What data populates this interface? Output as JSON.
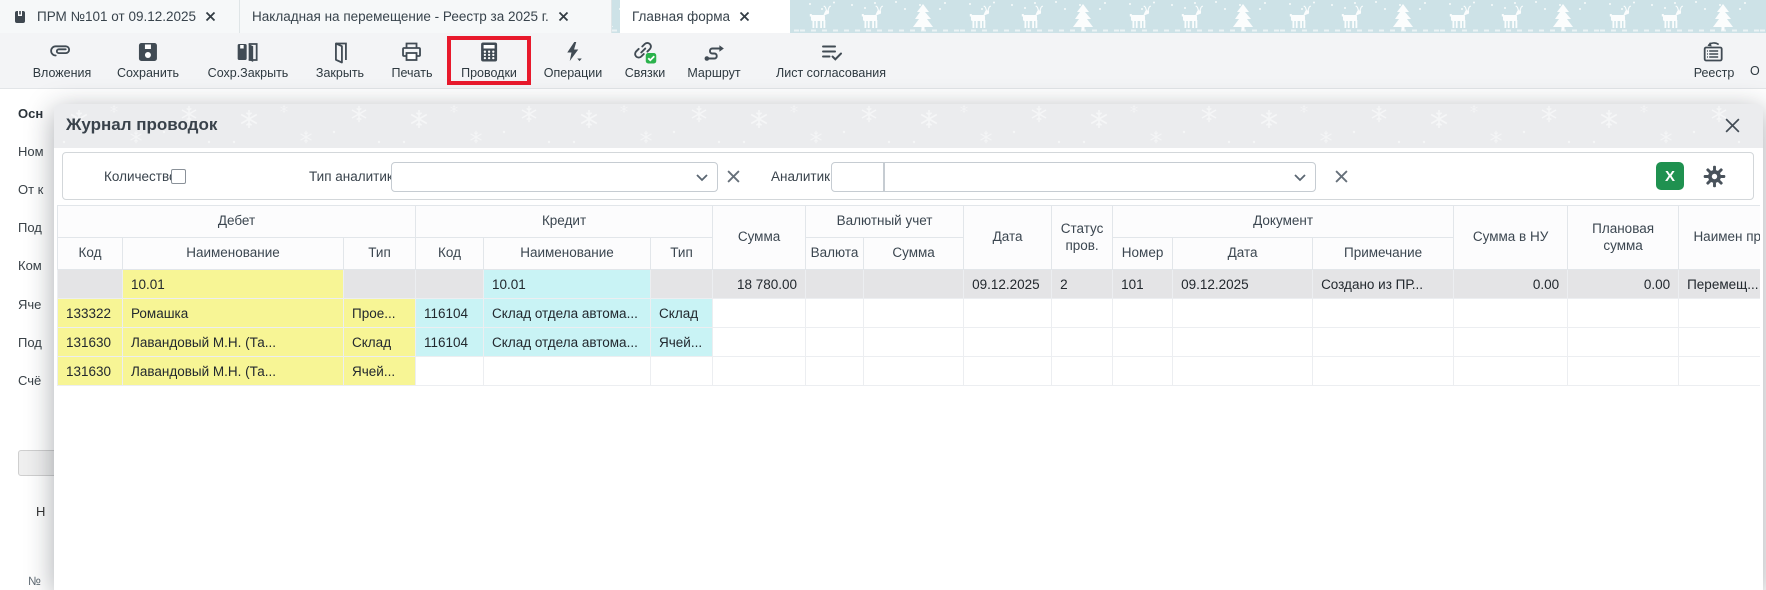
{
  "tabs": [
    {
      "title": "ПРМ №101 от 09.12.2025"
    },
    {
      "title": "Накладная на перемещение - Реестр за 2025 г."
    },
    {
      "title": "Главная форма"
    }
  ],
  "toolbar": {
    "buttons": [
      {
        "label": "Вложения",
        "icon": "paperclip-icon"
      },
      {
        "label": "Сохранить",
        "icon": "save-icon"
      },
      {
        "label": "Сохр.Закрыть",
        "icon": "save-close-icon"
      },
      {
        "label": "Закрыть",
        "icon": "door-icon"
      },
      {
        "label": "Печать",
        "icon": "printer-icon"
      },
      {
        "label": "Проводки",
        "icon": "calculator-icon",
        "highlighted": true
      },
      {
        "label": "Операции",
        "icon": "lightning-icon"
      },
      {
        "label": "Связки",
        "icon": "links-icon"
      },
      {
        "label": "Маршрут",
        "icon": "route-icon"
      },
      {
        "label": "Лист согласования",
        "icon": "checklist-icon"
      }
    ],
    "registry_label": "Реестр",
    "partial_label": "О"
  },
  "background_form": {
    "labels": [
      "Осн",
      "Ном",
      "От к",
      "Под",
      "Ком",
      "Яче",
      "Под",
      "Счё"
    ],
    "section_label": "Н",
    "row_number_label": "№"
  },
  "modal": {
    "title": "Журнал проводок",
    "filters": {
      "quantity": "Количество",
      "type_label": "Тип аналитики",
      "analytics_label": "Аналитика"
    },
    "table": {
      "header": {
        "debit": "Дебет",
        "credit": "Кредит",
        "currency_group": "Валютный учет",
        "document_group": "Документ",
        "code": "Код",
        "name": "Наименование",
        "type": "Тип",
        "sum": "Сумма",
        "currency": "Валюта",
        "date": "Дата",
        "status": "Статус пров.",
        "number": "Номер",
        "note": "Примечание",
        "sum_nu": "Сумма в НУ",
        "planned": "Плановая сумма",
        "entry_name": "Наимен пров"
      },
      "rows": [
        {
          "cells": [
            {
              "t": "",
              "h": "g"
            },
            {
              "t": "10.01",
              "h": "y"
            },
            {
              "t": "",
              "h": "g"
            },
            {
              "t": "",
              "h": "g"
            },
            {
              "t": "10.01",
              "h": "c"
            },
            {
              "t": "",
              "h": "g"
            },
            {
              "t": "18 780.00",
              "h": "g"
            },
            {
              "t": "",
              "h": "g"
            },
            {
              "t": "",
              "h": "g"
            },
            {
              "t": "09.12.2025",
              "h": "g"
            },
            {
              "t": "2",
              "h": "g"
            },
            {
              "t": "101",
              "h": "g"
            },
            {
              "t": "09.12.2025",
              "h": "g"
            },
            {
              "t": "Создано из ПР...",
              "h": "g"
            },
            {
              "t": "0.00",
              "h": "g"
            },
            {
              "t": "0.00",
              "h": "g"
            },
            {
              "t": "Перемещ...",
              "h": "g"
            }
          ]
        },
        {
          "cells": [
            {
              "t": "133322",
              "h": "y"
            },
            {
              "t": "Ромашка",
              "h": "y"
            },
            {
              "t": "Прое...",
              "h": "y"
            },
            {
              "t": "116104",
              "h": "c"
            },
            {
              "t": "Склад отдела автома...",
              "h": "c"
            },
            {
              "t": "Склад",
              "h": "c"
            },
            {
              "t": "",
              "h": ""
            },
            {
              "t": "",
              "h": ""
            },
            {
              "t": "",
              "h": ""
            },
            {
              "t": "",
              "h": ""
            },
            {
              "t": "",
              "h": ""
            },
            {
              "t": "",
              "h": ""
            },
            {
              "t": "",
              "h": ""
            },
            {
              "t": "",
              "h": ""
            },
            {
              "t": "",
              "h": ""
            },
            {
              "t": "",
              "h": ""
            },
            {
              "t": "",
              "h": ""
            }
          ]
        },
        {
          "cells": [
            {
              "t": "131630",
              "h": "y"
            },
            {
              "t": "Лавандовый М.Н. (Та...",
              "h": "y"
            },
            {
              "t": "Склад",
              "h": "y"
            },
            {
              "t": "116104",
              "h": "c"
            },
            {
              "t": "Склад отдела автома...",
              "h": "c"
            },
            {
              "t": "Ячей...",
              "h": "c"
            },
            {
              "t": "",
              "h": ""
            },
            {
              "t": "",
              "h": ""
            },
            {
              "t": "",
              "h": ""
            },
            {
              "t": "",
              "h": ""
            },
            {
              "t": "",
              "h": ""
            },
            {
              "t": "",
              "h": ""
            },
            {
              "t": "",
              "h": ""
            },
            {
              "t": "",
              "h": ""
            },
            {
              "t": "",
              "h": ""
            },
            {
              "t": "",
              "h": ""
            },
            {
              "t": "",
              "h": ""
            }
          ]
        },
        {
          "cells": [
            {
              "t": "131630",
              "h": "y"
            },
            {
              "t": "Лавандовый М.Н. (Та...",
              "h": "y"
            },
            {
              "t": "Ячей...",
              "h": "y"
            },
            {
              "t": "",
              "h": ""
            },
            {
              "t": "",
              "h": ""
            },
            {
              "t": "",
              "h": ""
            },
            {
              "t": "",
              "h": ""
            },
            {
              "t": "",
              "h": ""
            },
            {
              "t": "",
              "h": ""
            },
            {
              "t": "",
              "h": ""
            },
            {
              "t": "",
              "h": ""
            },
            {
              "t": "",
              "h": ""
            },
            {
              "t": "",
              "h": ""
            },
            {
              "t": "",
              "h": ""
            },
            {
              "t": "",
              "h": ""
            },
            {
              "t": "",
              "h": ""
            },
            {
              "t": "",
              "h": ""
            }
          ]
        }
      ]
    }
  },
  "colors": {
    "highlight_red": "#e8192c",
    "excel_green": "#1f9150",
    "badge_green": "#2bb24c",
    "debit_yellow": "#f7f595",
    "credit_cyan": "#c9f3f5",
    "summary_gray": "#e4e4e6",
    "festive_blue": "#cde2e7"
  }
}
